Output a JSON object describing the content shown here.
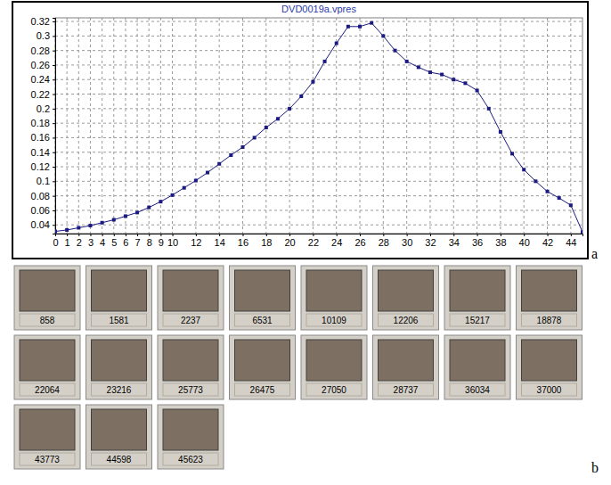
{
  "chart_data": {
    "type": "line",
    "title": "DVD0019a.vpres",
    "panel": "a",
    "x": [
      0,
      1,
      2,
      3,
      4,
      5,
      6,
      7,
      8,
      9,
      10,
      11,
      12,
      13,
      14,
      15,
      16,
      17,
      18,
      19,
      20,
      21,
      22,
      23,
      24,
      25,
      26,
      27,
      28,
      29,
      30,
      31,
      32,
      33,
      34,
      35,
      36,
      37,
      38,
      39,
      40,
      41,
      42,
      43,
      44,
      45
    ],
    "values": [
      0.031,
      0.033,
      0.036,
      0.039,
      0.043,
      0.047,
      0.052,
      0.057,
      0.064,
      0.072,
      0.081,
      0.091,
      0.101,
      0.112,
      0.124,
      0.136,
      0.147,
      0.16,
      0.174,
      0.186,
      0.2,
      0.217,
      0.237,
      0.265,
      0.29,
      0.313,
      0.313,
      0.318,
      0.3,
      0.28,
      0.265,
      0.257,
      0.25,
      0.247,
      0.24,
      0.235,
      0.225,
      0.2,
      0.168,
      0.138,
      0.116,
      0.1,
      0.086,
      0.077,
      0.067,
      0.03
    ],
    "color": "#1a1a80",
    "marker": "square",
    "line_style": "solid",
    "grid": true,
    "xlim": [
      0,
      45
    ],
    "xticks": [
      0,
      1,
      2,
      3,
      4,
      5,
      6,
      7,
      8,
      9,
      10,
      12,
      14,
      16,
      18,
      20,
      22,
      24,
      26,
      28,
      30,
      32,
      34,
      36,
      38,
      40,
      42,
      44
    ],
    "ylim": [
      0.028,
      0.325
    ],
    "yticks": [
      0.04,
      0.06,
      0.08,
      0.1,
      0.12,
      0.14,
      0.16,
      0.18,
      0.2,
      0.22,
      0.24,
      0.26,
      0.28,
      0.3,
      0.32
    ]
  },
  "thumbnails": {
    "panel": "b",
    "frames": [
      858,
      1581,
      2237,
      6531,
      10109,
      12206,
      15217,
      18878,
      22064,
      23216,
      25773,
      26475,
      27050,
      28737,
      36034,
      37000,
      43773,
      44598,
      45623
    ]
  }
}
